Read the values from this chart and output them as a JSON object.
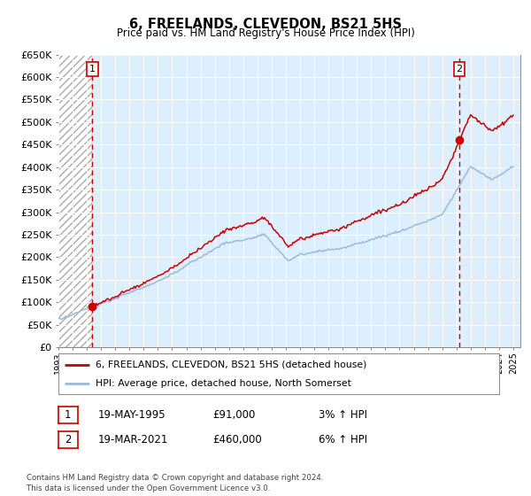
{
  "title": "6, FREELANDS, CLEVEDON, BS21 5HS",
  "subtitle": "Price paid vs. HM Land Registry's House Price Index (HPI)",
  "ylim": [
    0,
    650000
  ],
  "yticks": [
    0,
    50000,
    100000,
    150000,
    200000,
    250000,
    300000,
    350000,
    400000,
    450000,
    500000,
    550000,
    600000,
    650000
  ],
  "xlim_start": 1993.0,
  "xlim_end": 2025.5,
  "line1_color": "#cc0000",
  "line2_color": "#99bbdd",
  "marker_color": "#cc0000",
  "sale1_year": 1995.38,
  "sale1_price": 91000,
  "sale2_year": 2021.21,
  "sale2_price": 460000,
  "annotation1_label": "1",
  "annotation2_label": "2",
  "legend_label1": "6, FREELANDS, CLEVEDON, BS21 5HS (detached house)",
  "legend_label2": "HPI: Average price, detached house, North Somerset",
  "note1_num": "1",
  "note1_date": "19-MAY-1995",
  "note1_price": "£91,000",
  "note1_hpi": "3% ↑ HPI",
  "note2_num": "2",
  "note2_date": "19-MAR-2021",
  "note2_price": "£460,000",
  "note2_hpi": "6% ↑ HPI",
  "footer": "Contains HM Land Registry data © Crown copyright and database right 2024.\nThis data is licensed under the Open Government Licence v3.0.",
  "bg_color": "#ddeeff",
  "hatch_color": "#aaaaaa"
}
